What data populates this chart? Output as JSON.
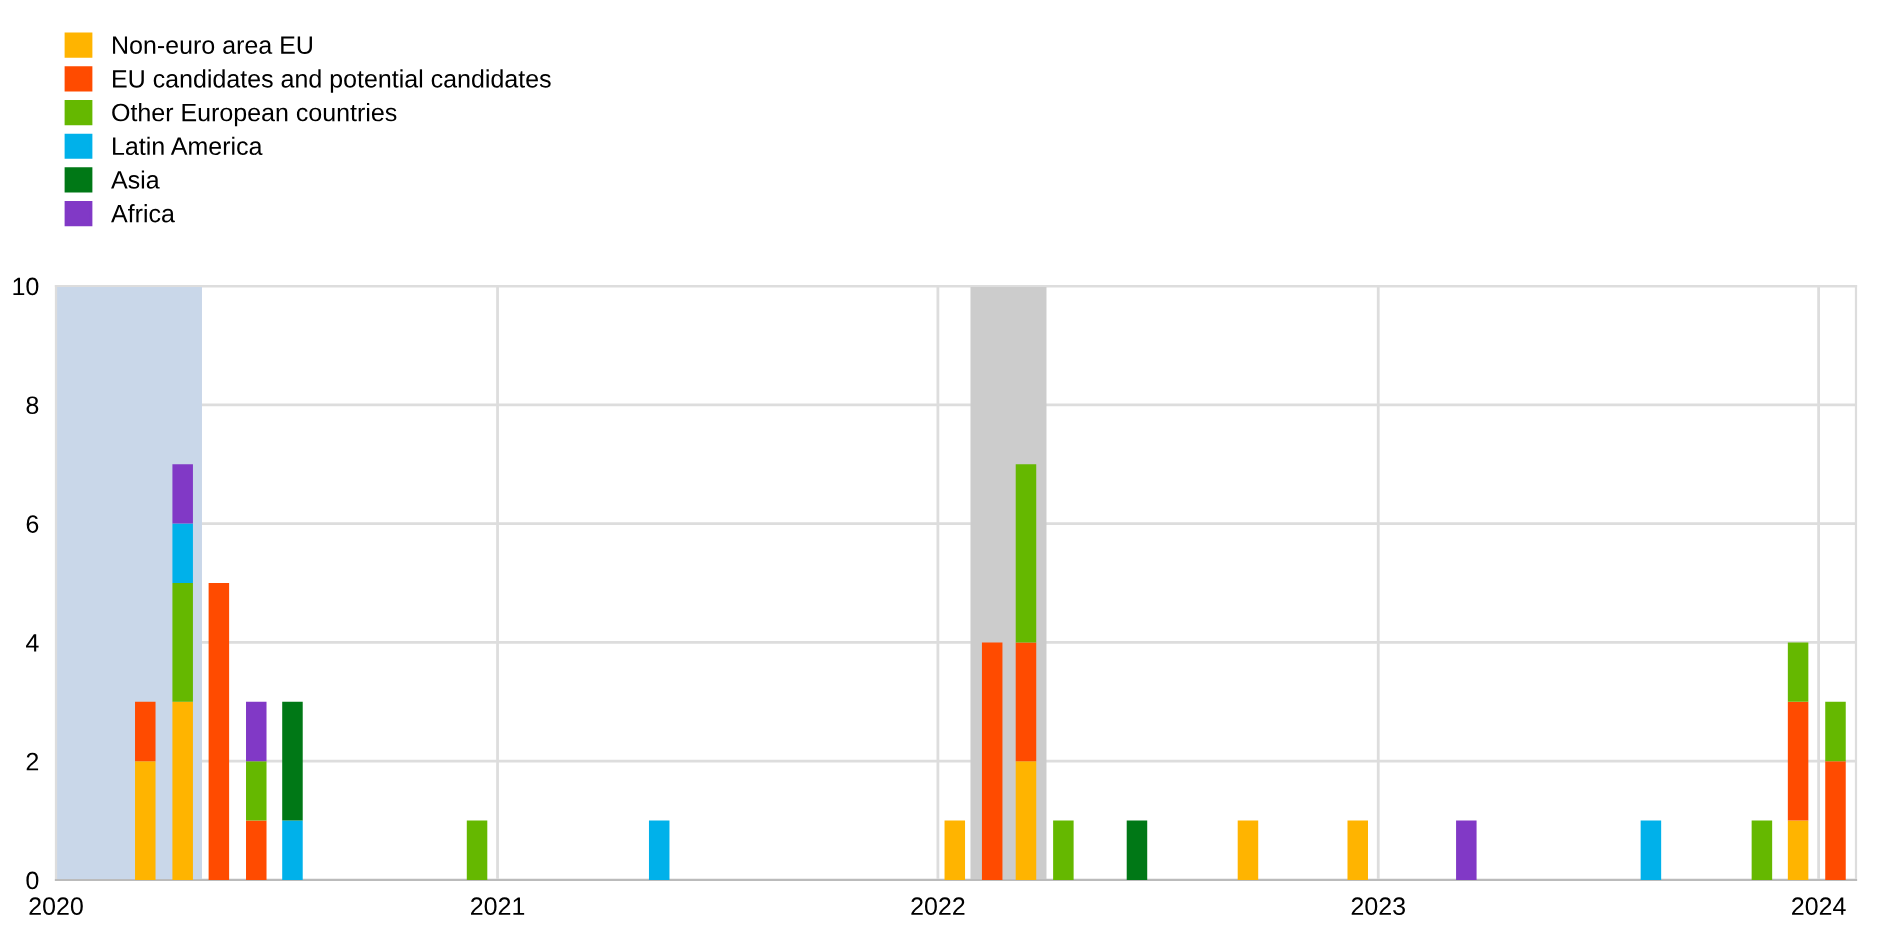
{
  "chart_data": {
    "type": "bar",
    "stacked": true,
    "x": [
      "2020-03-15",
      "2020-04-15",
      "2020-05-15",
      "2020-06-15",
      "2020-07-15",
      "2020-12-15",
      "2021-05-15",
      "2022-01-15",
      "2022-02-15",
      "2022-03-15",
      "2022-04-15",
      "2022-06-15",
      "2022-09-15",
      "2022-12-15",
      "2023-03-15",
      "2023-08-15",
      "2023-11-15",
      "2023-12-15",
      "2024-01-15"
    ],
    "series": [
      {
        "name": "Non-euro area EU",
        "color": "#ffb400",
        "values": [
          2,
          3,
          null,
          null,
          null,
          null,
          null,
          1,
          null,
          2,
          null,
          null,
          1,
          1,
          null,
          null,
          null,
          1,
          null
        ]
      },
      {
        "name": "EU candidates and potential candidates",
        "color": "#ff4b00",
        "values": [
          1,
          null,
          5,
          1,
          null,
          null,
          null,
          null,
          4,
          2,
          null,
          null,
          null,
          null,
          null,
          null,
          null,
          2,
          2
        ]
      },
      {
        "name": "Other European countries",
        "color": "#65b800",
        "values": [
          null,
          2,
          null,
          1,
          null,
          1,
          null,
          null,
          null,
          3,
          1,
          null,
          null,
          null,
          null,
          null,
          1,
          1,
          1
        ]
      },
      {
        "name": "Latin America",
        "color": "#00b1ea",
        "values": [
          null,
          1,
          null,
          null,
          1,
          null,
          1,
          null,
          null,
          null,
          null,
          null,
          null,
          null,
          null,
          1,
          null,
          null,
          null
        ]
      },
      {
        "name": "Asia",
        "color": "#007816",
        "values": [
          null,
          null,
          null,
          null,
          2,
          null,
          null,
          null,
          null,
          null,
          null,
          1,
          null,
          null,
          null,
          null,
          null,
          null,
          null
        ]
      },
      {
        "name": "Africa",
        "color": "#8139c6",
        "values": [
          null,
          1,
          null,
          1,
          null,
          null,
          null,
          null,
          null,
          null,
          null,
          null,
          null,
          null,
          1,
          null,
          null,
          null,
          null
        ]
      }
    ],
    "xlim": [
      "2020-01-01",
      "2024-02-01"
    ],
    "xticks": [
      {
        "value": "2020-01-01",
        "label": "2020"
      },
      {
        "value": "2021-01-01",
        "label": "2021"
      },
      {
        "value": "2022-01-01",
        "label": "2022"
      },
      {
        "value": "2023-01-01",
        "label": "2023"
      },
      {
        "value": "2024-01-01",
        "label": "2024"
      }
    ],
    "ylim": [
      0,
      10
    ],
    "yticks": [
      0,
      2,
      4,
      6,
      8,
      10
    ],
    "bands": [
      {
        "axis": "x",
        "from": "2020-01-01",
        "to": "2020-05-01",
        "color": "#c9d7e9"
      },
      {
        "axis": "x",
        "from": "2022-01-28",
        "to": "2022-04-01",
        "color": "#cccccc"
      }
    ],
    "grid": true,
    "legend": "top left"
  }
}
